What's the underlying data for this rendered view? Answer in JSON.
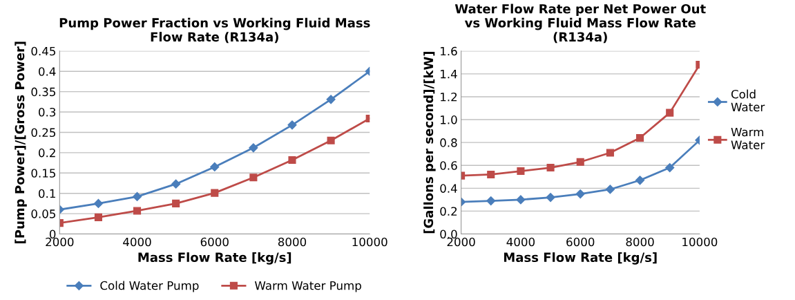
{
  "chart_data": [
    {
      "type": "line",
      "title": "Pump Power Fraction vs Working Fluid Mass Flow Rate (R134a)",
      "xlabel": "Mass Flow Rate [kg/s]",
      "ylabel": "[Pump Power]/[Gross Power]",
      "x": [
        2000,
        3000,
        4000,
        5000,
        6000,
        7000,
        8000,
        9000,
        10000
      ],
      "series": [
        {
          "name": "Cold Water Pump",
          "color": "#4a7ebb",
          "marker": "diamond",
          "values": [
            0.06,
            0.075,
            0.092,
            0.123,
            0.165,
            0.212,
            0.268,
            0.331,
            0.4
          ]
        },
        {
          "name": "Warm Water Pump",
          "color": "#be4b48",
          "marker": "square",
          "values": [
            0.027,
            0.041,
            0.057,
            0.075,
            0.101,
            0.139,
            0.182,
            0.23,
            0.284
          ]
        }
      ],
      "xlim": [
        2000,
        10000
      ],
      "xticks": [
        2000,
        4000,
        6000,
        8000,
        10000
      ],
      "ylim": [
        0,
        0.45
      ],
      "yticks": [
        0,
        0.05,
        0.1,
        0.15,
        0.2,
        0.25,
        0.3,
        0.35,
        0.4,
        0.45
      ],
      "grid": "y",
      "legend": "bottom",
      "line_style": "solid"
    },
    {
      "type": "line",
      "title": "Water Flow Rate per Net Power Out vs Working Fluid Mass Flow Rate (R134a)",
      "xlabel": "Mass Flow Rate [kg/s]",
      "ylabel": "[Gallons per second]/[kW]",
      "x": [
        2000,
        3000,
        4000,
        5000,
        6000,
        7000,
        8000,
        9000,
        10000
      ],
      "series": [
        {
          "name": "Cold Water",
          "color": "#4a7ebb",
          "marker": "diamond",
          "values": [
            0.28,
            0.29,
            0.3,
            0.32,
            0.35,
            0.39,
            0.47,
            0.58,
            0.82
          ]
        },
        {
          "name": "Warm Water",
          "color": "#be4b48",
          "marker": "square",
          "values": [
            0.51,
            0.52,
            0.55,
            0.58,
            0.63,
            0.71,
            0.84,
            1.06,
            1.48
          ]
        }
      ],
      "xlim": [
        2000,
        10000
      ],
      "xticks": [
        2000,
        4000,
        6000,
        8000,
        10000
      ],
      "ylim": [
        0,
        1.6
      ],
      "yticks": [
        {
          "value": 0,
          "label": "0.0"
        },
        {
          "value": 0.2,
          "label": "0.2"
        },
        {
          "value": 0.4,
          "label": "0.4"
        },
        {
          "value": 0.6,
          "label": "0.6"
        },
        {
          "value": 0.8,
          "label": "0.8"
        },
        {
          "value": 1.0,
          "label": "1.0"
        },
        {
          "value": 1.2,
          "label": "1.2"
        },
        {
          "value": 1.4,
          "label": "1.4"
        },
        {
          "value": 1.6,
          "label": "1.6"
        }
      ],
      "grid": "y",
      "legend": "right",
      "line_style": "solid"
    }
  ]
}
